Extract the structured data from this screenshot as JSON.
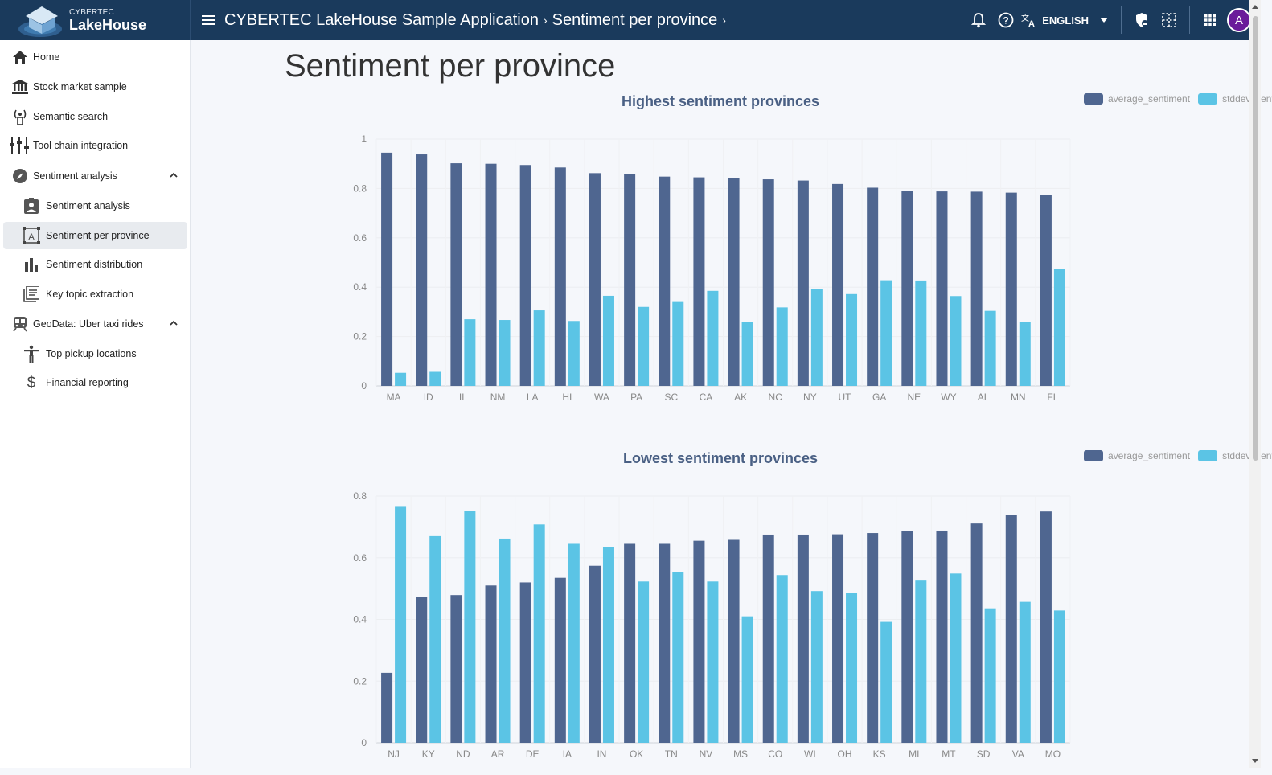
{
  "app": {
    "logo_small": "CYBERTEC",
    "logo_big": "LakeHouse",
    "breadcrumb": [
      "CYBERTEC LakeHouse Sample Application",
      "Sentiment per province"
    ],
    "language": "ENGLISH",
    "avatar_letter": "A"
  },
  "sidebar": {
    "items": [
      {
        "label": "Home",
        "icon": "home-icon"
      },
      {
        "label": "Stock market sample",
        "icon": "bank-icon"
      },
      {
        "label": "Semantic search",
        "icon": "signal-tower-icon"
      },
      {
        "label": "Tool chain integration",
        "icon": "tool-chain-icon"
      },
      {
        "label": "Sentiment analysis",
        "icon": "compass-icon",
        "expanded": true
      },
      {
        "label": "Sentiment analysis",
        "icon": "badge-icon"
      },
      {
        "label": "Sentiment per province",
        "icon": "text-box-icon",
        "active": true
      },
      {
        "label": "Sentiment distribution",
        "icon": "bar-chart-icon"
      },
      {
        "label": "Key topic extraction",
        "icon": "library-icon"
      },
      {
        "label": "GeoData: Uber taxi rides",
        "icon": "train-icon",
        "expanded": true
      },
      {
        "label": "Top pickup locations",
        "icon": "accessibility-icon"
      },
      {
        "label": "Financial reporting",
        "icon": "dollar-icon"
      }
    ]
  },
  "main": {
    "title": "Sentiment per province"
  },
  "colors": {
    "average": "#4f6690",
    "stddev": "#5bc4e5"
  },
  "chart_data": [
    {
      "type": "bar",
      "title": "Highest sentiment provinces",
      "categories": [
        "MA",
        "ID",
        "IL",
        "NM",
        "LA",
        "HI",
        "WA",
        "PA",
        "SC",
        "CA",
        "AK",
        "NC",
        "NY",
        "UT",
        "GA",
        "NE",
        "WY",
        "AL",
        "MN",
        "FL"
      ],
      "series": [
        {
          "name": "average_sentiment",
          "values": [
            0.945,
            0.938,
            0.902,
            0.9,
            0.895,
            0.885,
            0.862,
            0.858,
            0.848,
            0.845,
            0.843,
            0.837,
            0.832,
            0.818,
            0.803,
            0.79,
            0.788,
            0.787,
            0.783,
            0.774
          ]
        },
        {
          "name": "stddev_sentiment",
          "values": [
            0.053,
            0.057,
            0.27,
            0.267,
            0.306,
            0.263,
            0.365,
            0.32,
            0.34,
            0.385,
            0.26,
            0.318,
            0.392,
            0.372,
            0.428,
            0.427,
            0.364,
            0.304,
            0.258,
            0.475
          ]
        }
      ],
      "ylim": [
        0,
        1
      ],
      "yticks": [
        0,
        0.2,
        0.4,
        0.6,
        0.8,
        1
      ],
      "legend": "top-right",
      "grid": true
    },
    {
      "type": "bar",
      "title": "Lowest sentiment provinces",
      "categories": [
        "NJ",
        "KY",
        "ND",
        "AR",
        "DE",
        "IA",
        "IN",
        "OK",
        "TN",
        "NV",
        "MS",
        "CO",
        "WI",
        "OH",
        "KS",
        "MI",
        "MT",
        "SD",
        "VA",
        "MO"
      ],
      "series": [
        {
          "name": "average_sentiment",
          "values": [
            0.227,
            0.473,
            0.479,
            0.51,
            0.52,
            0.535,
            0.574,
            0.645,
            0.645,
            0.655,
            0.658,
            0.675,
            0.675,
            0.676,
            0.68,
            0.686,
            0.688,
            0.711,
            0.74,
            0.75
          ]
        },
        {
          "name": "stddev_sentiment",
          "values": [
            0.765,
            0.67,
            0.752,
            0.662,
            0.708,
            0.645,
            0.635,
            0.523,
            0.555,
            0.523,
            0.41,
            0.544,
            0.492,
            0.487,
            0.392,
            0.526,
            0.549,
            0.436,
            0.457,
            0.429
          ]
        }
      ],
      "ylim": [
        0,
        0.8
      ],
      "yticks": [
        0,
        0.2,
        0.4,
        0.6,
        0.8
      ],
      "legend": "top-right",
      "grid": true
    }
  ]
}
